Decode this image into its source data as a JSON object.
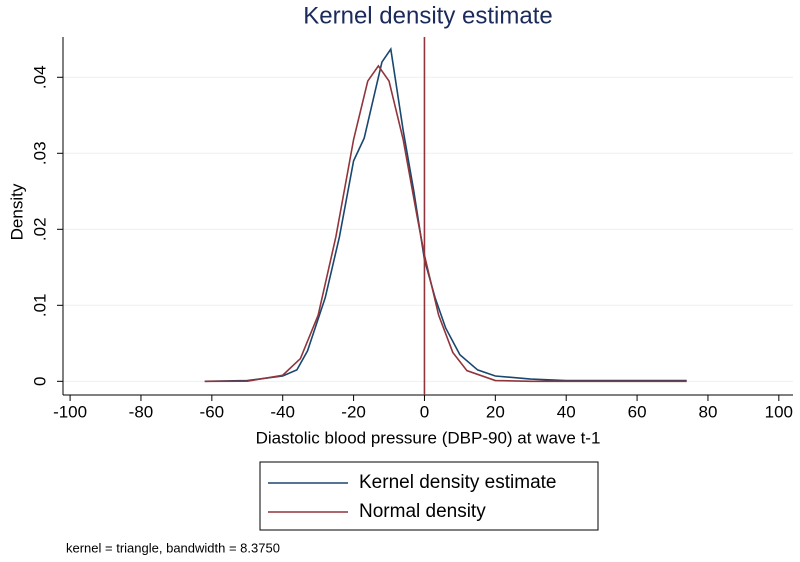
{
  "chart_data": {
    "type": "line",
    "title": "Kernel density estimate",
    "xlabel": "Diastolic blood pressure (DBP-90) at wave t-1",
    "ylabel": "Density",
    "note": "kernel = triangle, bandwidth = 8.3750",
    "xlim": [
      -102,
      104
    ],
    "xticks": [
      -100,
      -80,
      -60,
      -40,
      -20,
      0,
      20,
      40,
      60,
      80,
      100
    ],
    "ylim": [
      -0.0018,
      0.0453
    ],
    "yticks": [
      0,
      {
        "value": 0.01,
        "label": ".01"
      },
      {
        "value": 0.02,
        "label": ".02"
      },
      {
        "value": 0.03,
        "label": ".03"
      },
      {
        "value": 0.04,
        "label": ".04"
      }
    ],
    "grid": true,
    "xline": 0,
    "xline_color": "#90353b",
    "series": [
      {
        "name": "Kernel density estimate",
        "color": "#1a476f",
        "x": [
          -62,
          -50,
          -40,
          -36,
          -33,
          -28,
          -24,
          -20,
          -17,
          -14,
          -12,
          -9.5,
          -6,
          -3,
          0,
          3,
          6,
          10,
          15,
          20,
          30,
          40,
          50,
          60,
          74
        ],
        "values": [
          0,
          0.0001,
          0.0007,
          0.0015,
          0.004,
          0.011,
          0.019,
          0.029,
          0.032,
          0.038,
          0.042,
          0.0437,
          0.033,
          0.025,
          0.016,
          0.011,
          0.007,
          0.0035,
          0.0015,
          0.0007,
          0.0003,
          0.0001,
          0.0001,
          0.0001,
          0.0001
        ]
      },
      {
        "name": "Normal density",
        "color": "#90353b",
        "x": [
          -62,
          -50,
          -40,
          -35,
          -30,
          -25,
          -20,
          -16,
          -13,
          -10,
          -6,
          -2,
          0,
          4,
          8,
          12,
          20,
          30,
          40,
          50,
          60,
          74
        ],
        "values": [
          0,
          2e-05,
          0.0008,
          0.003,
          0.0087,
          0.019,
          0.0318,
          0.0395,
          0.0415,
          0.0395,
          0.0318,
          0.0215,
          0.0166,
          0.0087,
          0.0038,
          0.0014,
          0.0001,
          0,
          0,
          0,
          0,
          0
        ]
      }
    ]
  }
}
